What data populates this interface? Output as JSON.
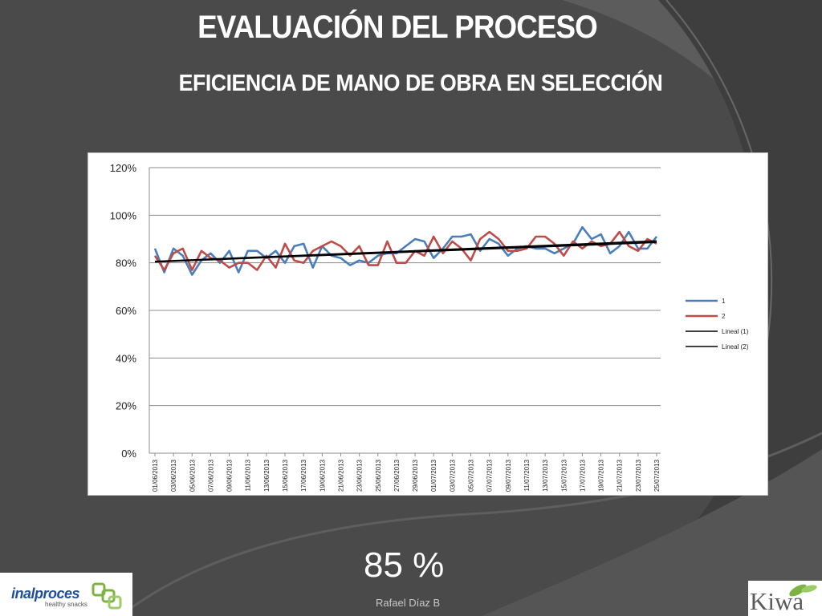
{
  "slide": {
    "title": "EVALUACIÓN DEL PROCESO",
    "subtitle": "EFICIENCIA DE MANO DE OBRA EN SELECCIÓN",
    "result": "85 %",
    "author": "Rafael Díaz B"
  },
  "logos": {
    "left_brand": "inalproces",
    "left_tagline": "healthy snacks",
    "right_brand": "Kiwa"
  },
  "colors": {
    "series1": "#4a7ebb",
    "series2": "#be4b48",
    "trend": "#000000"
  },
  "chart_data": {
    "type": "line",
    "title": "",
    "xlabel": "",
    "ylabel": "",
    "ylim": [
      0,
      1.2
    ],
    "y_ticks": [
      "0%",
      "20%",
      "40%",
      "60%",
      "80%",
      "100%",
      "120%"
    ],
    "grid": true,
    "legend_position": "right",
    "x_tick_labels": [
      "01/06/2013",
      "03/06/2013",
      "05/06/2013",
      "07/06/2013",
      "09/06/2013",
      "11/06/2013",
      "13/06/2013",
      "15/06/2013",
      "17/06/2013",
      "19/06/2013",
      "21/06/2013",
      "23/06/2013",
      "25/06/2013",
      "27/06/2013",
      "29/06/2013",
      "01/07/2013",
      "03/07/2013",
      "05/07/2013",
      "07/07/2013",
      "09/07/2013",
      "11/07/2013",
      "13/07/2013",
      "15/07/2013",
      "17/07/2013",
      "19/07/2013",
      "21/07/2013",
      "23/07/2013",
      "25/07/2013"
    ],
    "series": [
      {
        "name": "1",
        "values": [
          0.86,
          0.76,
          0.86,
          0.83,
          0.75,
          0.81,
          0.84,
          0.8,
          0.85,
          0.76,
          0.85,
          0.85,
          0.82,
          0.85,
          0.8,
          0.87,
          0.88,
          0.78,
          0.87,
          0.83,
          0.82,
          0.79,
          0.81,
          0.8,
          0.83,
          0.84,
          0.84,
          0.87,
          0.9,
          0.89,
          0.82,
          0.86,
          0.91,
          0.91,
          0.92,
          0.85,
          0.9,
          0.88,
          0.83,
          0.86,
          0.87,
          0.86,
          0.86,
          0.84,
          0.86,
          0.88,
          0.95,
          0.9,
          0.92,
          0.84,
          0.87,
          0.93,
          0.86,
          0.86,
          0.91
        ]
      },
      {
        "name": "2",
        "values": [
          0.83,
          0.77,
          0.84,
          0.86,
          0.77,
          0.85,
          0.82,
          0.81,
          0.78,
          0.8,
          0.8,
          0.77,
          0.83,
          0.78,
          0.88,
          0.81,
          0.8,
          0.85,
          0.87,
          0.89,
          0.87,
          0.83,
          0.87,
          0.79,
          0.79,
          0.89,
          0.8,
          0.8,
          0.85,
          0.83,
          0.91,
          0.84,
          0.89,
          0.86,
          0.81,
          0.9,
          0.93,
          0.9,
          0.85,
          0.85,
          0.86,
          0.91,
          0.91,
          0.88,
          0.83,
          0.89,
          0.86,
          0.89,
          0.87,
          0.88,
          0.93,
          0.87,
          0.85,
          0.9,
          0.88
        ]
      }
    ],
    "trendlines": [
      {
        "name": "Lineal (1)",
        "start": 0.806,
        "end": 0.892
      },
      {
        "name": "Lineal (2)",
        "start": 0.804,
        "end": 0.886
      }
    ]
  }
}
